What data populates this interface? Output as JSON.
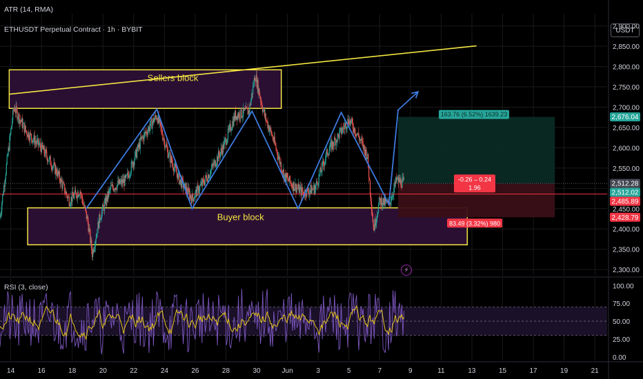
{
  "header": {
    "atr_label": "ATR (14, RMA)",
    "symbol_label": "ETHUSDT Perpetual Contract · 1h · BYBIT",
    "rsi_label": "RSI (3, close)",
    "currency_button": "USDT"
  },
  "annotations": {
    "sellers_block": "Sellers block",
    "buyer_block": "Buyer block",
    "target_label": "163.76 (6.52%) 1639.23",
    "stop_label": "83.49 (3.32%) 980",
    "position_top": "-0.26 – 0.24",
    "position_bottom": "1.96",
    "alert_icon": "bolt-icon"
  },
  "price_tags": [
    {
      "value": 2676.04,
      "text": "2,676.04",
      "color": "#26a69a"
    },
    {
      "value": 2512.28,
      "text": "2,512.28",
      "color": "#434651"
    },
    {
      "value": 2512.02,
      "text": "2,512.02",
      "color": "#26a69a"
    },
    {
      "value": 2485.89,
      "text": "2,485.89",
      "color": "#f23645"
    },
    {
      "value": 2428.79,
      "text": "2,428.79",
      "color": "#f23645"
    }
  ],
  "colors": {
    "background": "#000000",
    "grid": "#1a1a1a",
    "up_candle": "#26a69a",
    "down_candle": "#ef5350",
    "zone_stroke": "#f5e642",
    "zone_fill": "#2a0f33",
    "trend_line": "#f5e642",
    "zigzag": "#3d7be0",
    "red_line": "#f23645",
    "rsi_line": "#7e57c2",
    "rsi_ma": "#e6c619"
  },
  "chart_data": [
    {
      "type": "candlestick",
      "title": "ETHUSDT Perpetual Contract · 1h · BYBIT",
      "ylim": [
        2285,
        2930
      ],
      "yticks": [
        2300,
        2350,
        2400,
        2450,
        2500,
        2550,
        2600,
        2650,
        2700,
        2750,
        2800,
        2850,
        2900
      ],
      "ytick_labels": [
        "2,300.00",
        "2,350.00",
        "2,400.00",
        "2,450.00",
        "2,500.00",
        "2,550.00",
        "2,600.00",
        "2,650.00",
        "2,700.00",
        "2,750.00",
        "2,800.00",
        "2,850.00",
        "2,900.00"
      ],
      "x_labels": [
        "14",
        "16",
        "18",
        "20",
        "22",
        "24",
        "26",
        "28",
        "30",
        "Jun",
        "3",
        "5",
        "7",
        "9",
        "11",
        "13",
        "15",
        "17",
        "19",
        "21"
      ],
      "x_label_days": [
        0,
        2,
        4,
        6,
        8,
        10,
        12,
        14,
        16,
        18,
        20,
        22,
        24,
        26,
        28,
        30,
        32,
        34,
        36,
        38
      ],
      "x_range_days": [
        -0.7,
        38.8
      ],
      "grid": true,
      "price_path": [
        {
          "d": -0.7,
          "p": 2430
        },
        {
          "d": 0.2,
          "p": 2700
        },
        {
          "d": 1.0,
          "p": 2640
        },
        {
          "d": 2.0,
          "p": 2600
        },
        {
          "d": 3.0,
          "p": 2540
        },
        {
          "d": 3.8,
          "p": 2470
        },
        {
          "d": 4.5,
          "p": 2495
        },
        {
          "d": 5.0,
          "p": 2420
        },
        {
          "d": 5.3,
          "p": 2340
        },
        {
          "d": 5.8,
          "p": 2430
        },
        {
          "d": 6.5,
          "p": 2500
        },
        {
          "d": 7.5,
          "p": 2520
        },
        {
          "d": 8.5,
          "p": 2620
        },
        {
          "d": 9.5,
          "p": 2680
        },
        {
          "d": 10.2,
          "p": 2590
        },
        {
          "d": 11.0,
          "p": 2520
        },
        {
          "d": 11.8,
          "p": 2475
        },
        {
          "d": 12.8,
          "p": 2530
        },
        {
          "d": 13.8,
          "p": 2600
        },
        {
          "d": 14.6,
          "p": 2680
        },
        {
          "d": 15.5,
          "p": 2690
        },
        {
          "d": 15.9,
          "p": 2780
        },
        {
          "d": 16.5,
          "p": 2680
        },
        {
          "d": 17.0,
          "p": 2630
        },
        {
          "d": 17.8,
          "p": 2530
        },
        {
          "d": 18.3,
          "p": 2510
        },
        {
          "d": 19.0,
          "p": 2490
        },
        {
          "d": 19.8,
          "p": 2500
        },
        {
          "d": 20.6,
          "p": 2590
        },
        {
          "d": 21.5,
          "p": 2640
        },
        {
          "d": 22.0,
          "p": 2670
        },
        {
          "d": 22.6,
          "p": 2630
        },
        {
          "d": 23.2,
          "p": 2580
        },
        {
          "d": 23.6,
          "p": 2400
        },
        {
          "d": 24.0,
          "p": 2470
        },
        {
          "d": 24.6,
          "p": 2460
        },
        {
          "d": 25.1,
          "p": 2520
        },
        {
          "d": 25.6,
          "p": 2512
        }
      ],
      "zones": [
        {
          "label": "Sellers block",
          "d0": -0.1,
          "d1": 17.6,
          "p_low": 2697,
          "p_high": 2792
        },
        {
          "label": "Buyer block",
          "d0": 1.1,
          "d1": 29.7,
          "p_low": 2361,
          "p_high": 2452
        }
      ],
      "trend_line": [
        {
          "d": -0.1,
          "p": 2732
        },
        {
          "d": 30.3,
          "p": 2851
        }
      ],
      "zigzag": [
        {
          "d": 4.9,
          "p": 2450
        },
        {
          "d": 9.5,
          "p": 2695
        },
        {
          "d": 11.8,
          "p": 2450
        },
        {
          "d": 15.7,
          "p": 2690
        },
        {
          "d": 18.7,
          "p": 2450
        },
        {
          "d": 21.5,
          "p": 2687
        },
        {
          "d": 23.9,
          "p": 2513
        },
        {
          "d": 24.6,
          "p": 2460
        },
        {
          "d": 25.2,
          "p": 2693
        },
        {
          "d": 26.5,
          "p": 2738
        }
      ],
      "horizontal_line": {
        "p": 2485.89
      },
      "position": {
        "d0": 25.2,
        "d1": 35.4,
        "entry": 2512.02,
        "target": 2676.04,
        "stop": 2428.79
      }
    },
    {
      "type": "line",
      "title": "RSI (3, close)",
      "ylim": [
        -5,
        110
      ],
      "yticks": [
        0,
        25,
        50,
        75,
        100
      ],
      "ytick_labels": [
        "0.00",
        "25.00",
        "50.00",
        "75.00",
        "100.00"
      ],
      "bands": [
        30,
        50,
        70
      ],
      "series": [
        {
          "color": "#7e57c2",
          "range": [
            5,
            95
          ]
        },
        {
          "color": "#e6c619",
          "range": [
            28,
            72
          ]
        }
      ]
    }
  ]
}
